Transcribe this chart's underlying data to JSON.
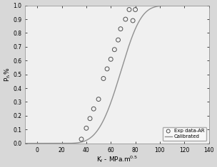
{
  "exp_x": [
    36,
    40,
    43,
    46,
    50,
    54,
    57,
    60,
    63,
    66,
    68,
    72,
    75,
    78,
    80
  ],
  "exp_y": [
    0.03,
    0.11,
    0.18,
    0.25,
    0.32,
    0.47,
    0.54,
    0.61,
    0.68,
    0.75,
    0.83,
    0.9,
    0.97,
    0.89,
    0.97
  ],
  "weibull_K0": 72.0,
  "weibull_m": 4.0,
  "weibull_Kmin": 20.0,
  "xlim": [
    -10,
    140
  ],
  "ylim": [
    0.0,
    1.0
  ],
  "xticks": [
    0,
    20,
    40,
    60,
    80,
    100,
    120,
    140
  ],
  "yticks": [
    0.0,
    0.1,
    0.2,
    0.3,
    0.4,
    0.5,
    0.6,
    0.7,
    0.8,
    0.9,
    1.0
  ],
  "xlabel": "K$_I$ - MPa.m$^{0.5}$",
  "ylabel": "P$_f$,%",
  "legend_labels": [
    "Exp data-AR",
    "Calibrated"
  ],
  "line_color": "#909090",
  "marker_facecolor": "none",
  "marker_edge_color": "#505050",
  "background_color": "#d8d8d8",
  "plot_bg_color": "#f0f0f0"
}
